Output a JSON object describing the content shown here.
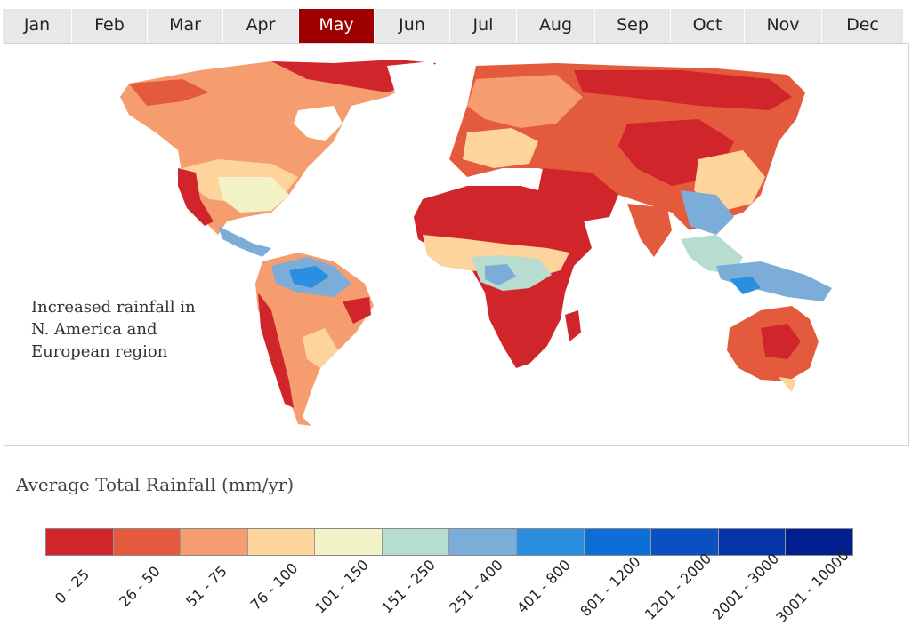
{
  "tabs": [
    "Jan",
    "Feb",
    "Mar",
    "Apr",
    "May",
    "Jun",
    "Jul",
    "Aug",
    "Sep",
    "Oct",
    "Nov",
    "Dec"
  ],
  "active_tab": "May",
  "map": {
    "annotation": "Increased rainfall in N. America and European region"
  },
  "legend": {
    "title": "Average Total Rainfall (mm/yr)",
    "bins": [
      {
        "label": "0 - 25",
        "color": "#d0262b"
      },
      {
        "label": "26 - 50",
        "color": "#e45a3d"
      },
      {
        "label": "51 - 75",
        "color": "#f59d6e"
      },
      {
        "label": "76 - 100",
        "color": "#fdd49c"
      },
      {
        "label": "101 - 150",
        "color": "#f2f2c7"
      },
      {
        "label": "151 - 250",
        "color": "#b6ddd0"
      },
      {
        "label": "251 - 400",
        "color": "#7cadd8"
      },
      {
        "label": "401 - 800",
        "color": "#2b8fe0"
      },
      {
        "label": "801 - 1200",
        "color": "#0d6fd6"
      },
      {
        "label": "1201 - 2000",
        "color": "#0a50c0"
      },
      {
        "label": "2001 - 3000",
        "color": "#0533a8"
      },
      {
        "label": "3001 - 10000",
        "color": "#021f8f"
      }
    ]
  }
}
